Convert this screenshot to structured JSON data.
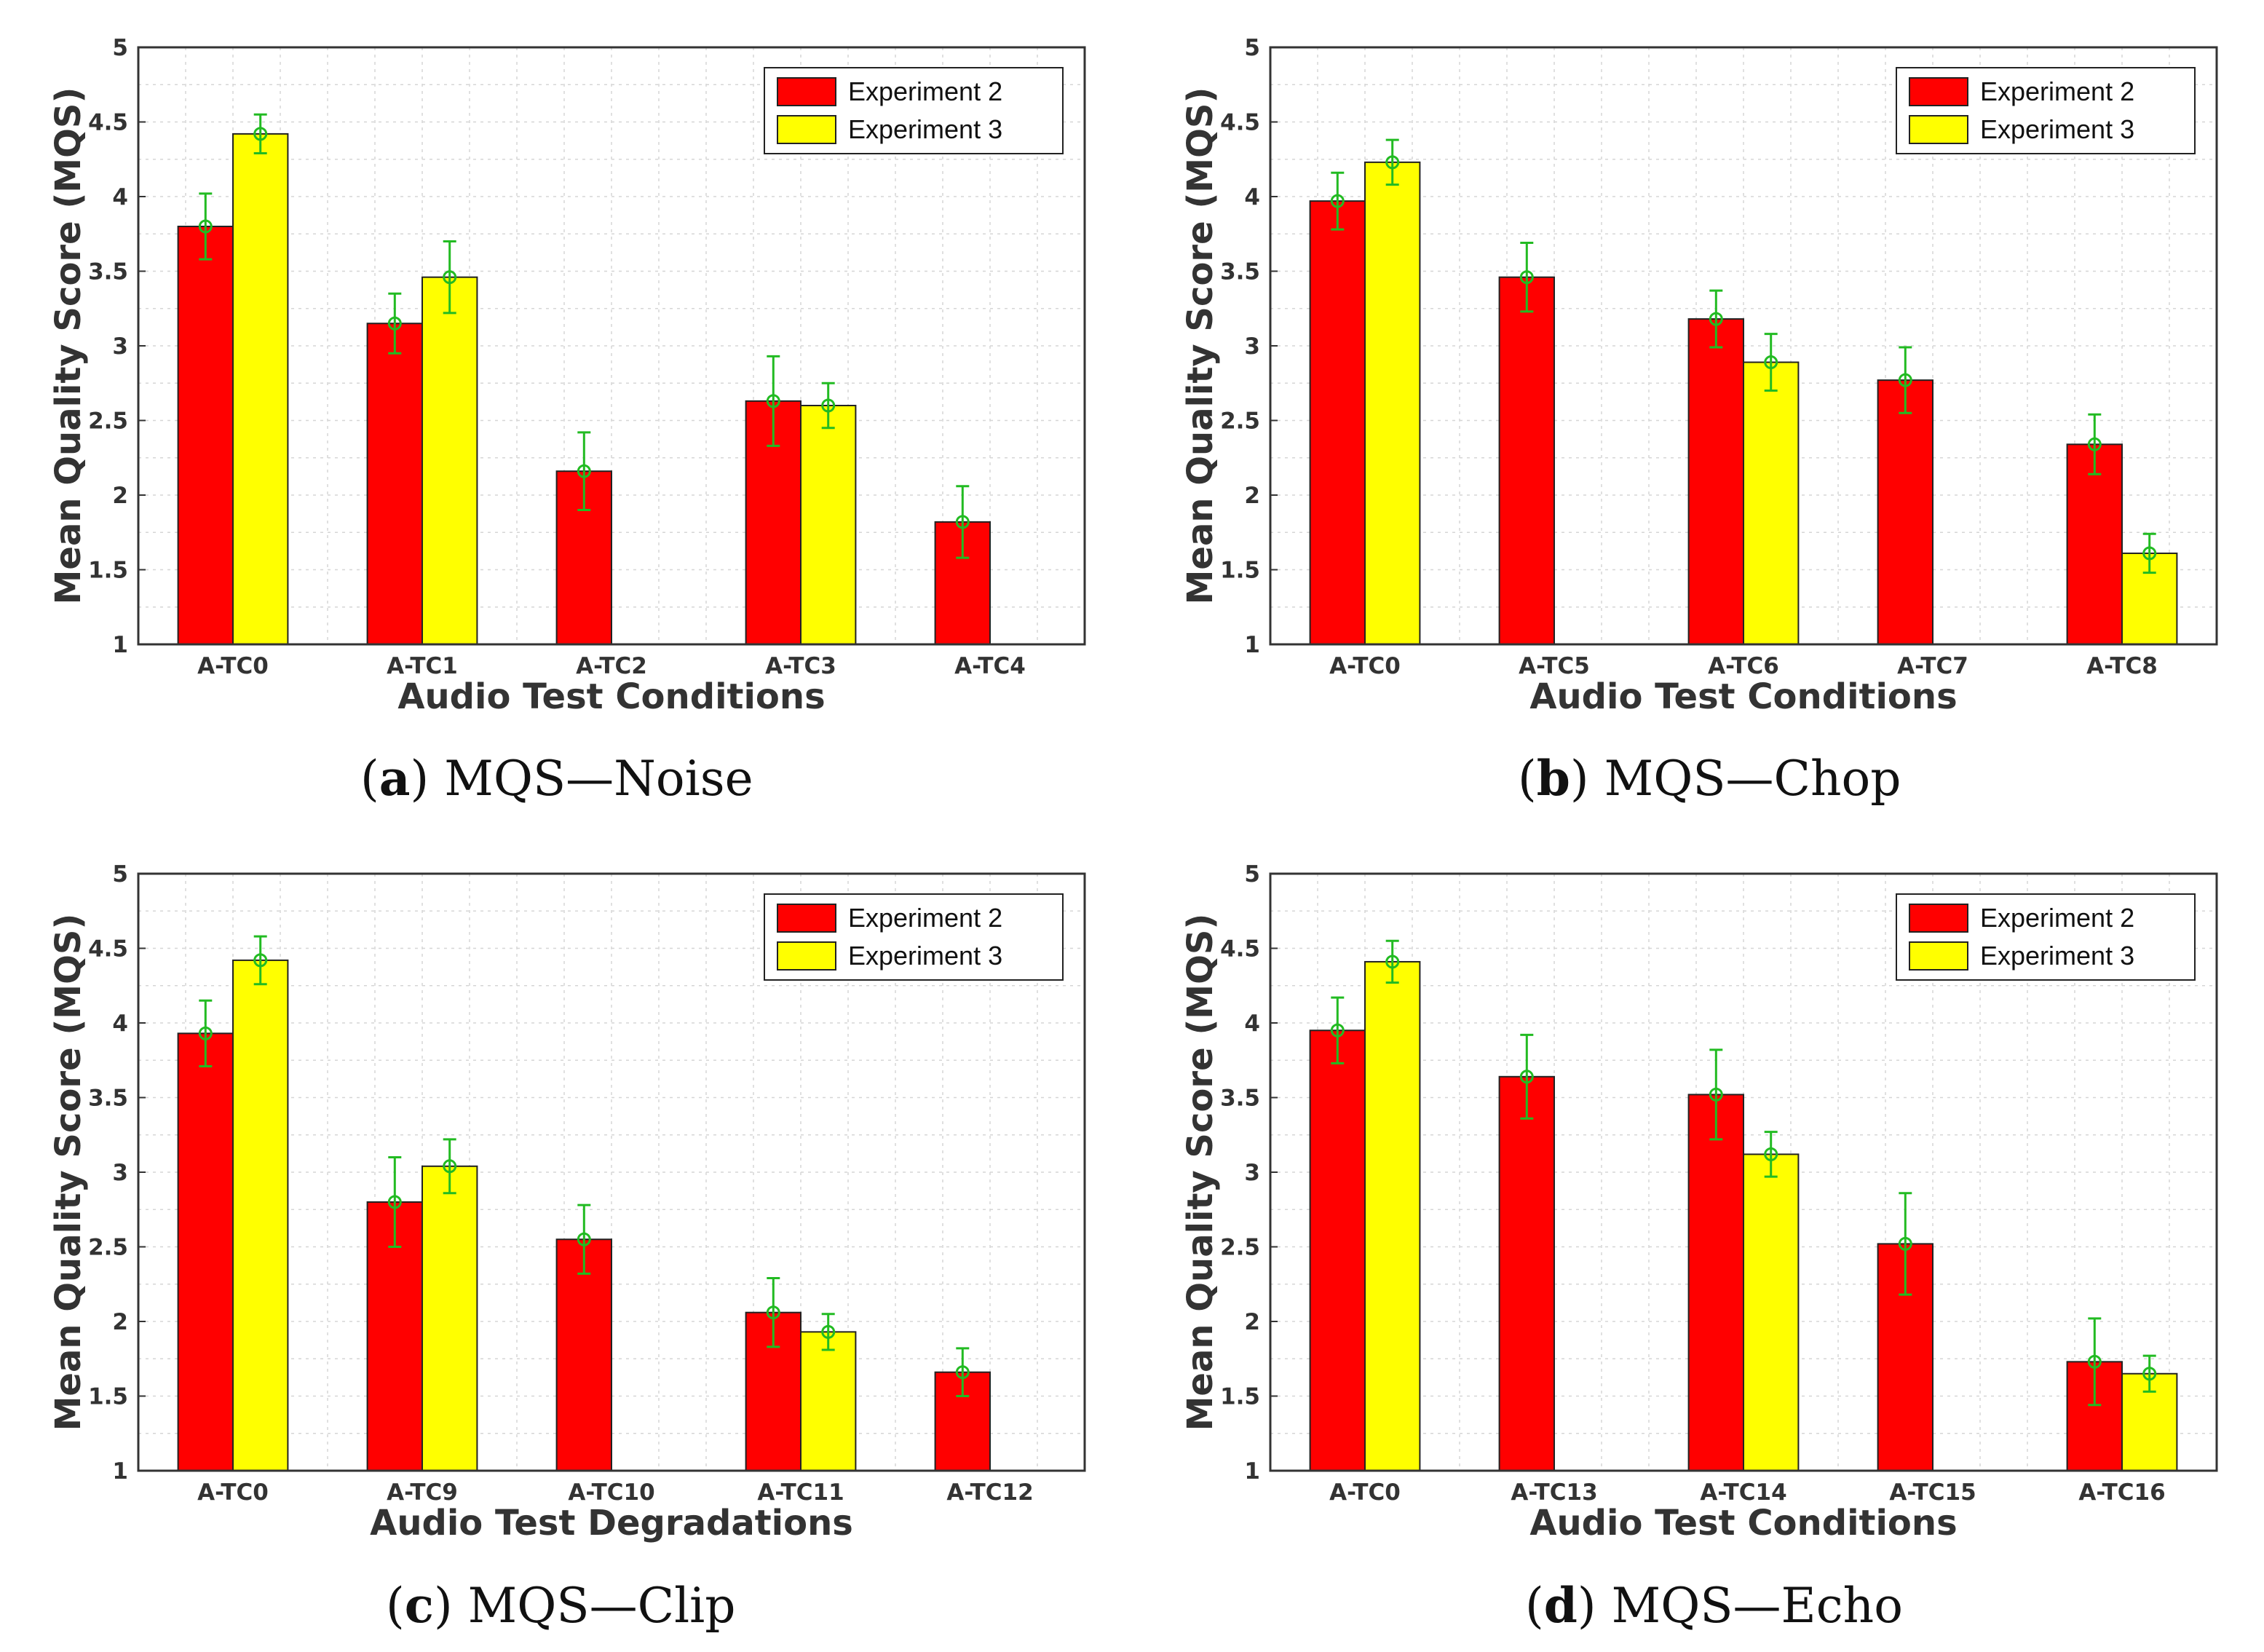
{
  "figure": {
    "panels": [
      {
        "caption_letter": "a",
        "caption_text": "MQS—Noise",
        "chart_data": {
          "type": "bar",
          "xlabel": "Audio Test Conditions",
          "ylabel": "Mean Quality Score (MQS)",
          "ylim": [
            1,
            5
          ],
          "yticks": [
            "1",
            "1.5",
            "2",
            "2.5",
            "3",
            "3.5",
            "4",
            "4.5",
            "5"
          ],
          "grid": true,
          "legend_position": "top-right",
          "categories": [
            "A-TC0",
            "A-TC1",
            "A-TC2",
            "A-TC3",
            "A-TC4"
          ],
          "series": [
            {
              "name": "Experiment 2",
              "color": "#ff0000",
              "values": [
                3.8,
                3.15,
                2.16,
                2.63,
                1.82
              ],
              "ci": [
                0.22,
                0.2,
                0.26,
                0.3,
                0.24
              ]
            },
            {
              "name": "Experiment 3",
              "color": "#ffff00",
              "values": [
                4.42,
                3.46,
                null,
                2.6,
                null
              ],
              "ci": [
                0.13,
                0.24,
                null,
                0.15,
                null
              ]
            }
          ]
        }
      },
      {
        "caption_letter": "b",
        "caption_text": "MQS—Chop",
        "chart_data": {
          "type": "bar",
          "xlabel": "Audio Test Conditions",
          "ylabel": "Mean Quality Score (MQS)",
          "ylim": [
            1,
            5
          ],
          "yticks": [
            "1",
            "1.5",
            "2",
            "2.5",
            "3",
            "3.5",
            "4",
            "4.5",
            "5"
          ],
          "grid": true,
          "legend_position": "top-right",
          "categories": [
            "A-TC0",
            "A-TC5",
            "A-TC6",
            "A-TC7",
            "A-TC8"
          ],
          "series": [
            {
              "name": "Experiment 2",
              "color": "#ff0000",
              "values": [
                3.97,
                3.46,
                3.18,
                2.77,
                2.34
              ],
              "ci": [
                0.19,
                0.23,
                0.19,
                0.22,
                0.2
              ]
            },
            {
              "name": "Experiment 3",
              "color": "#ffff00",
              "values": [
                4.23,
                null,
                2.89,
                null,
                1.61
              ],
              "ci": [
                0.15,
                null,
                0.19,
                null,
                0.13
              ]
            }
          ]
        }
      },
      {
        "caption_letter": "c",
        "caption_text": "MQS—Clip",
        "chart_data": {
          "type": "bar",
          "xlabel": "Audio Test Degradations",
          "ylabel": "Mean Quality Score (MQS)",
          "ylim": [
            1,
            5
          ],
          "yticks": [
            "1",
            "1.5",
            "2",
            "2.5",
            "3",
            "3.5",
            "4",
            "4.5",
            "5"
          ],
          "grid": true,
          "legend_position": "top-right",
          "categories": [
            "A-TC0",
            "A-TC9",
            "A-TC10",
            "A-TC11",
            "A-TC12"
          ],
          "series": [
            {
              "name": "Experiment 2",
              "color": "#ff0000",
              "values": [
                3.93,
                2.8,
                2.55,
                2.06,
                1.66
              ],
              "ci": [
                0.22,
                0.3,
                0.23,
                0.23,
                0.16
              ]
            },
            {
              "name": "Experiment 3",
              "color": "#ffff00",
              "values": [
                4.42,
                3.04,
                null,
                1.93,
                null
              ],
              "ci": [
                0.16,
                0.18,
                null,
                0.12,
                null
              ]
            }
          ]
        }
      },
      {
        "caption_letter": "d",
        "caption_text": "MQS—Echo",
        "chart_data": {
          "type": "bar",
          "xlabel": "Audio Test Conditions",
          "ylabel": "Mean Quality Score (MQS)",
          "ylim": [
            1,
            5
          ],
          "yticks": [
            "1",
            "1.5",
            "2",
            "2.5",
            "3",
            "3.5",
            "4",
            "4.5",
            "5"
          ],
          "grid": true,
          "legend_position": "top-right",
          "categories": [
            "A-TC0",
            "A-TC13",
            "A-TC14",
            "A-TC15",
            "A-TC16"
          ],
          "series": [
            {
              "name": "Experiment 2",
              "color": "#ff0000",
              "values": [
                3.95,
                3.64,
                3.52,
                2.52,
                1.73
              ],
              "ci": [
                0.22,
                0.28,
                0.3,
                0.34,
                0.29
              ]
            },
            {
              "name": "Experiment 3",
              "color": "#ffff00",
              "values": [
                4.41,
                null,
                3.12,
                null,
                1.65
              ],
              "ci": [
                0.14,
                null,
                0.15,
                null,
                0.12
              ]
            }
          ]
        }
      }
    ],
    "errorbar_color": "#22bb22"
  }
}
